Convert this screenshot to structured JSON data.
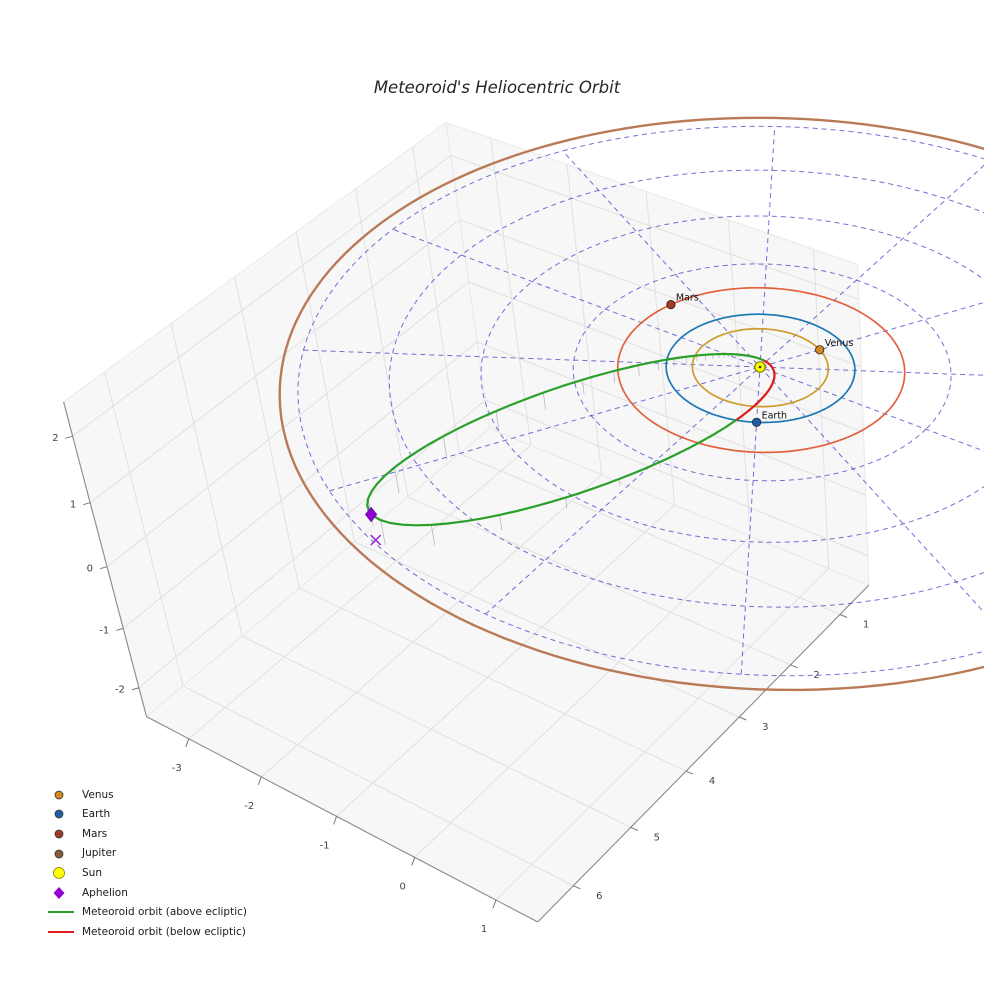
{
  "title": "Meteoroid's Heliocentric Orbit",
  "chart_data": {
    "type": "3d_orbit_plot",
    "title": "Meteoroid's Heliocentric Orbit",
    "axes": {
      "x_ticks": [
        -3,
        -2,
        -1,
        0,
        1
      ],
      "y_ticks": [
        1,
        2,
        3,
        4,
        5,
        6
      ],
      "z_ticks": [
        -2,
        -1,
        0,
        1,
        2
      ],
      "x_range": [
        -3.6,
        1.5
      ],
      "y_range": [
        0.4,
        6.6
      ],
      "z_range": [
        -2.5,
        2.5
      ]
    },
    "ecliptic_grid": {
      "circle_radii_au": [
        1,
        2,
        3,
        4,
        5
      ],
      "spoke_angles_deg": [
        0,
        30,
        60,
        90,
        120,
        150
      ],
      "color": "#4040c8",
      "style": "dashed"
    },
    "sun": {
      "label": "Sun",
      "position_au": [
        0,
        0,
        0
      ],
      "color": "#ffff00",
      "edge_color": "#808000"
    },
    "planets": [
      {
        "name": "Venus",
        "orbit_radius_au": 0.72,
        "marker_angle_deg": -60,
        "orbit_color": "#cf9b2a",
        "marker_color": "#d4881f",
        "labeled": true
      },
      {
        "name": "Earth",
        "orbit_radius_au": 1.0,
        "marker_angle_deg": 60,
        "orbit_color": "#1f77b4",
        "marker_color": "#1f5fa8",
        "labeled": true
      },
      {
        "name": "Mars",
        "orbit_radius_au": 1.52,
        "marker_angle_deg": 198,
        "orbit_color": "#e4613e",
        "marker_color": "#a33a22",
        "labeled": true
      },
      {
        "name": "Jupiter",
        "orbit_radius_au": 5.2,
        "marker_angle_deg": null,
        "orbit_color": "#b97a57",
        "marker_color": "#8c5a3b",
        "labeled": false
      }
    ],
    "meteoroid_orbit": {
      "semi_major_axis_au": 2.54,
      "eccentricity": 0.953,
      "perihelion_distance_au": 0.12,
      "aphelion_distance_au": 4.96,
      "aphelion_position_au": [
        -1.6,
        4.7,
        0.4
      ],
      "perihelion_longitude_deg": -71.2,
      "node_true_anomaly_deg": 143.6,
      "z_amplitude": 0.136,
      "above_color": "#2aa02a",
      "below_color": "#dd1c1c"
    },
    "aphelion_marker": {
      "label": "Aphelion",
      "color": "#9400d3",
      "ground_marker": "x",
      "ground_color": "#9932cc"
    },
    "legend": [
      {
        "label": "Venus",
        "marker": "dot",
        "color": "#d4881f"
      },
      {
        "label": "Earth",
        "marker": "dot",
        "color": "#1f5fa8"
      },
      {
        "label": "Mars",
        "marker": "dot",
        "color": "#a33a22"
      },
      {
        "label": "Jupiter",
        "marker": "dot",
        "color": "#8c5a3b"
      },
      {
        "label": "Sun",
        "marker": "dot-large",
        "color": "#ffff00"
      },
      {
        "label": "Aphelion",
        "marker": "diamond",
        "color": "#9400d3"
      },
      {
        "label": "Meteoroid orbit (above ecliptic)",
        "marker": "line",
        "color": "#2aa02a"
      },
      {
        "label": "Meteoroid orbit (below ecliptic)",
        "marker": "line",
        "color": "#dd1c1c"
      }
    ],
    "view": {
      "origin": [
        760,
        367
      ],
      "ex": [
        80,
        30
      ],
      "ey": [
        -50,
        45
      ],
      "ez": [
        -4,
        -63
      ],
      "persp_coeff": [
        0.25,
        0.25,
        0.25
      ],
      "persp_f": 14
    },
    "style": {
      "pane_fill": "#f2f2f2",
      "pane_grid": "#e0e0e0",
      "axis_edge": "#8a8a8a",
      "tick_label_color": "#444444",
      "stem_color": "#b0b0b0",
      "planet_label_color": "#111111"
    }
  }
}
